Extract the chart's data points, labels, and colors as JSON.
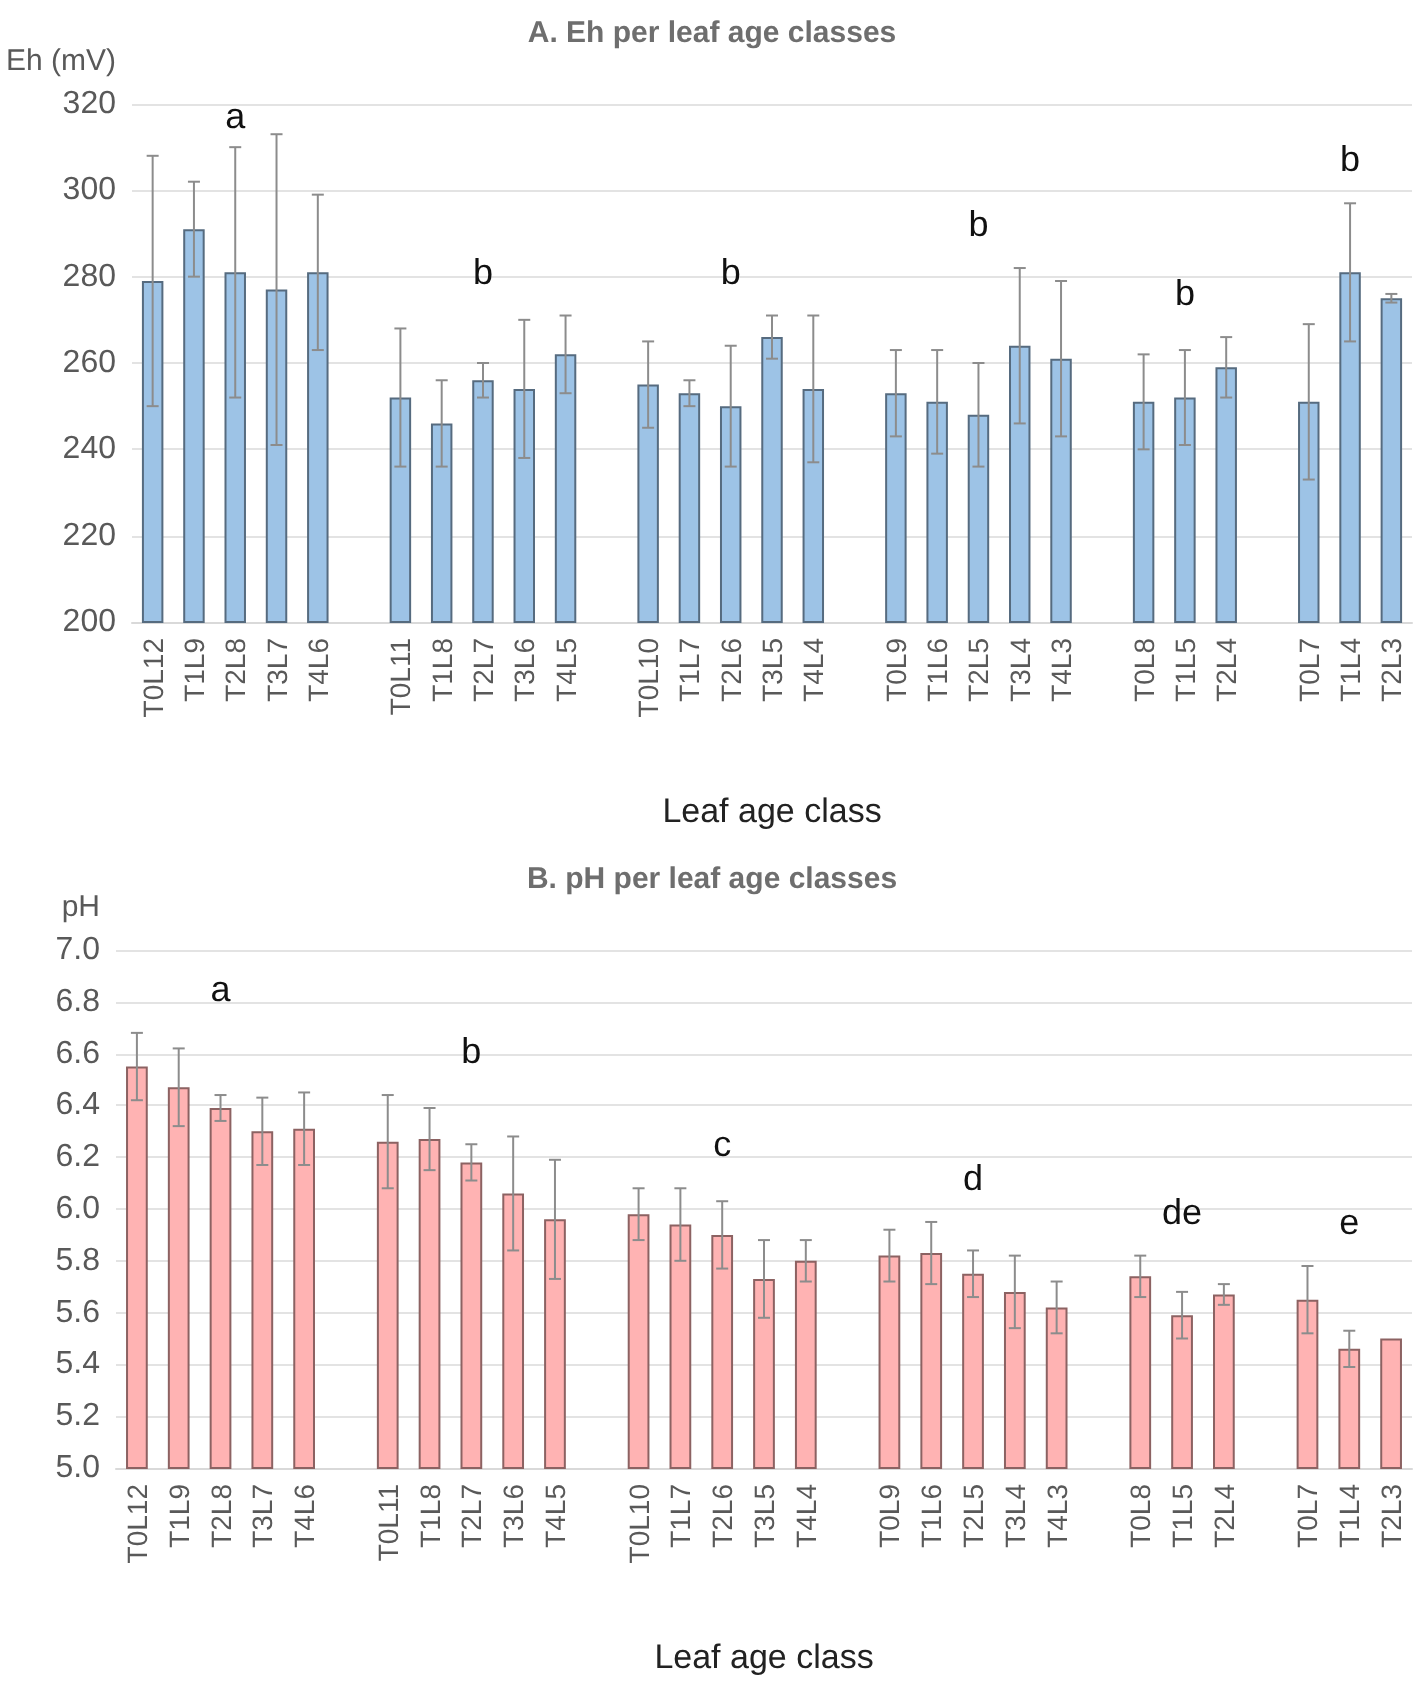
{
  "chart_data": [
    {
      "type": "bar",
      "title": "A. Eh per leaf age classes",
      "xlabel": "Leaf age class",
      "ylabel": "Eh (mV)",
      "categories": [
        "T0L12",
        "T1L9",
        "T2L8",
        "T3L7",
        "T4L6",
        null,
        "T0L11",
        "T1L8",
        "T2L7",
        "T3L6",
        "T4L5",
        null,
        "T0L10",
        "T1L7",
        "T2L6",
        "T3L5",
        "T4L4",
        null,
        "T0L9",
        "T1L6",
        "T2L5",
        "T3L4",
        "T4L3",
        null,
        "T0L8",
        "T1L5",
        "T2L4",
        null,
        "T0L7",
        "T1L4",
        "T2L3"
      ],
      "series": [
        {
          "color": "#9dc3e6",
          "values": [
            279,
            291,
            281,
            277,
            281,
            null,
            252,
            246,
            256,
            254,
            262,
            null,
            255,
            253,
            250,
            266,
            254,
            null,
            253,
            251,
            248,
            264,
            261,
            null,
            251,
            252,
            259,
            null,
            251,
            281,
            275
          ],
          "errors": [
            29,
            11,
            29,
            36,
            18,
            null,
            16,
            10,
            4,
            16,
            9,
            null,
            10,
            3,
            14,
            5,
            17,
            null,
            10,
            12,
            12,
            18,
            18,
            null,
            11,
            11,
            7,
            null,
            18,
            16,
            1
          ]
        }
      ],
      "ylim": [
        200,
        320
      ],
      "yticks": [
        200,
        220,
        240,
        260,
        280,
        300,
        320
      ],
      "grid": "y",
      "annotations": [
        "a",
        "b",
        "b",
        "b",
        "b",
        "b"
      ]
    },
    {
      "type": "bar",
      "title": "B. pH per leaf age classes",
      "xlabel": "Leaf age class",
      "ylabel": "pH",
      "categories": [
        "T0L12",
        "T1L9",
        "T2L8",
        "T3L7",
        "T4L6",
        null,
        "T0L11",
        "T1L8",
        "T2L7",
        "T3L6",
        "T4L5",
        null,
        "T0L10",
        "T1L7",
        "T2L6",
        "T3L5",
        "T4L4",
        null,
        "T0L9",
        "T1L6",
        "T2L5",
        "T3L4",
        "T4L3",
        null,
        "T0L8",
        "T1L5",
        "T2L4",
        null,
        "T0L7",
        "T1L4",
        "T2L3"
      ],
      "series": [
        {
          "color": "#ffb3b3",
          "values": [
            6.55,
            6.47,
            6.39,
            6.3,
            6.31,
            null,
            6.26,
            6.27,
            6.18,
            6.06,
            5.96,
            null,
            5.98,
            5.94,
            5.9,
            5.73,
            5.8,
            null,
            5.82,
            5.83,
            5.75,
            5.68,
            5.62,
            null,
            5.74,
            5.59,
            5.67,
            null,
            5.65,
            5.46,
            5.5
          ],
          "errors": [
            0.13,
            0.15,
            0.05,
            0.13,
            0.14,
            null,
            0.18,
            0.12,
            0.07,
            0.22,
            0.23,
            null,
            0.1,
            0.14,
            0.13,
            0.15,
            0.08,
            null,
            0.1,
            0.12,
            0.09,
            0.14,
            0.1,
            null,
            0.08,
            0.09,
            0.04,
            null,
            0.13,
            0.07,
            null
          ]
        }
      ],
      "ylim": [
        5.0,
        7.0
      ],
      "yticks": [
        {
          "value": 5,
          "label": "5.0"
        },
        5.2,
        5.4,
        5.6,
        5.8,
        {
          "value": 6,
          "label": "6.0"
        },
        6.2,
        6.4,
        6.6,
        6.8,
        {
          "value": 7,
          "label": "7.0"
        }
      ],
      "grid": "y",
      "annotations": [
        "a",
        "b",
        "c",
        "d",
        "de",
        "e"
      ]
    }
  ]
}
